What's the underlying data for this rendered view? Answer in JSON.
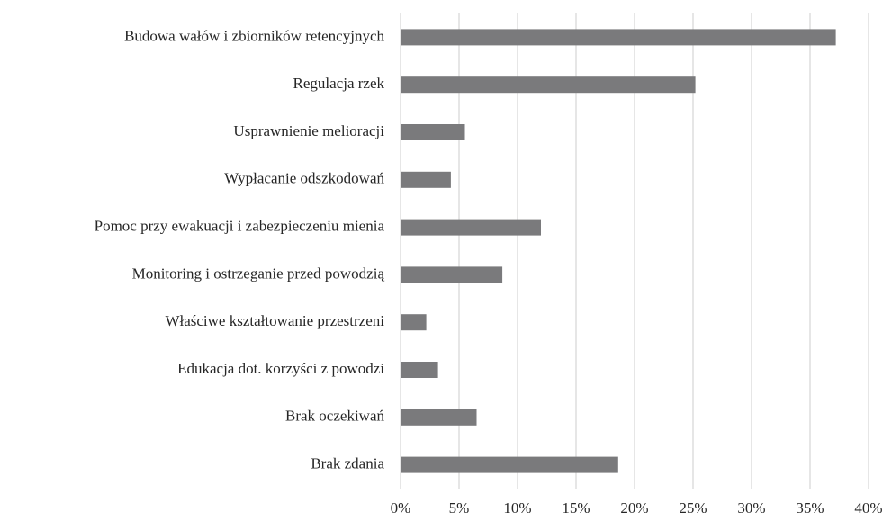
{
  "chart_data": {
    "type": "hbar",
    "categories": [
      "Budowa wałów i zbiorników retencyjnych",
      "Regulacja rzek",
      "Usprawnienie melioracji",
      "Wypłacanie odszkodowań",
      "Pomoc przy ewakuacji i zabezpieczeniu mienia",
      "Monitoring i ostrzeganie przed powodzią",
      "Właściwe kształtowanie przestrzeni",
      "Edukacja dot. korzyści z powodzi",
      "Brak oczekiwań",
      "Brak zdania"
    ],
    "values": [
      37.2,
      25.2,
      5.5,
      4.3,
      12.0,
      8.7,
      2.2,
      3.2,
      6.5,
      18.6
    ],
    "color": "#7a7a7c",
    "xlim": [
      0,
      40
    ],
    "xticks": [
      {
        "value": 0,
        "label": "0%"
      },
      {
        "value": 5,
        "label": "5%"
      },
      {
        "value": 10,
        "label": "10%"
      },
      {
        "value": 15,
        "label": "15%"
      },
      {
        "value": 20,
        "label": "20%"
      },
      {
        "value": 25,
        "label": "25%"
      },
      {
        "value": 30,
        "label": "30%"
      },
      {
        "value": 35,
        "label": "35%"
      },
      {
        "value": 40,
        "label": "40%"
      }
    ],
    "grid": true
  }
}
